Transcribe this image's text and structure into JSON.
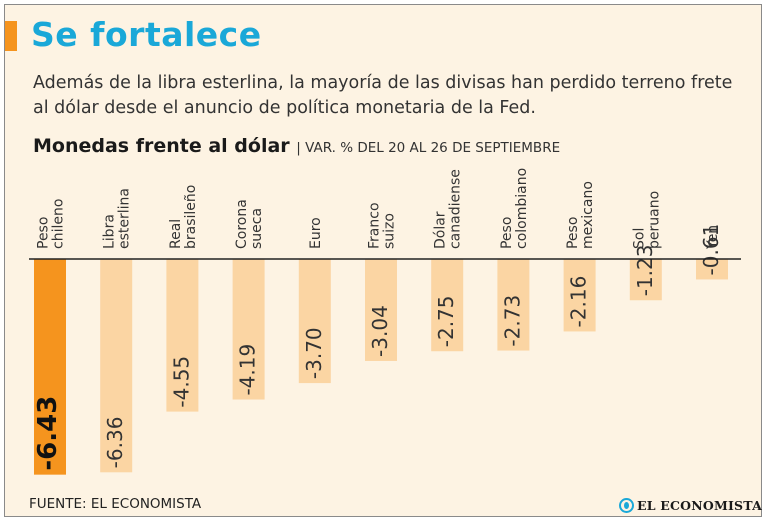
{
  "header": {
    "title": "Se fortalece",
    "subtitle": "Además de la libra esterlina, la mayoría de las divisas han perdido terreno frete al dólar desde el anuncio de política monetaria de la Fed."
  },
  "chart_data": {
    "type": "bar",
    "title": "Monedas frente al dólar",
    "subtitle": "| VAR. % DEL 20 AL 26 DE SEPTIEMBRE",
    "categories": [
      [
        "Peso",
        "chileno"
      ],
      [
        "Libra",
        "esterlina"
      ],
      [
        "Real",
        "brasileño"
      ],
      [
        "Corona",
        "sueca"
      ],
      [
        "Euro"
      ],
      [
        "Franco",
        "suizo"
      ],
      [
        "Dólar",
        "canadiense"
      ],
      [
        "Peso",
        "colombiano"
      ],
      [
        "Peso",
        "mexicano"
      ],
      [
        "Sol",
        "peruano"
      ],
      [
        "Yen"
      ]
    ],
    "values": [
      -6.43,
      -6.36,
      -4.55,
      -4.19,
      -3.7,
      -3.04,
      -2.75,
      -2.73,
      -2.16,
      -1.23,
      -0.61
    ],
    "labels": [
      "-6.43",
      "-6.36",
      "-4.55",
      "-4.19",
      "-3.70",
      "-3.04",
      "-2.75",
      "-2.73",
      "-2.16",
      "-1.23",
      "-0.61"
    ],
    "ylim": [
      -6.5,
      0
    ],
    "highlight_index": 0,
    "colors": {
      "bar": "#fbd5a3",
      "highlight": "#f5941e",
      "axis": "#222222",
      "text": "#333333"
    }
  },
  "footer": {
    "source": "FUENTE: EL ECONOMISTA",
    "logo": "EL ECONOMISTA"
  }
}
